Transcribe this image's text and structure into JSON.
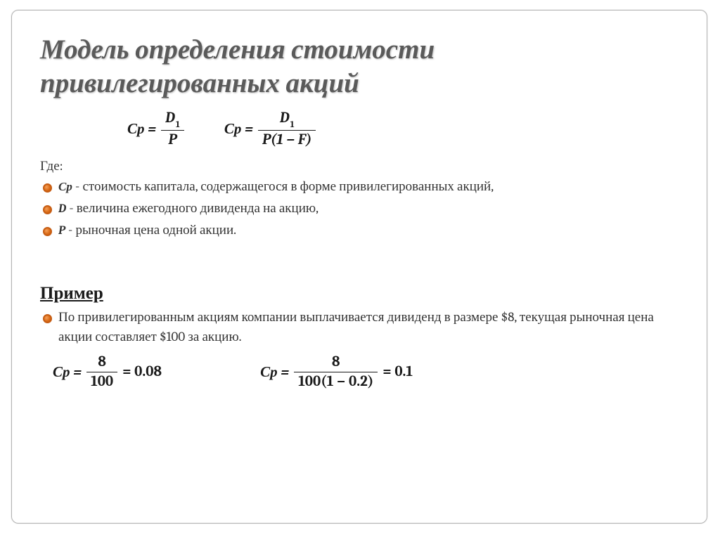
{
  "colors": {
    "title_text": "#5a5a5a",
    "body_text": "#333333",
    "formula_text": "#1a1a1a",
    "bullet_fill_start": "#f5a05a",
    "bullet_fill_mid": "#d96a15",
    "bullet_fill_end": "#b85510",
    "bullet_border": "#c75d13",
    "frame_border": "#b3b3b3",
    "background": "#ffffff"
  },
  "typography": {
    "title_fontsize": 39,
    "title_italic": true,
    "title_bold": true,
    "body_fontsize": 19,
    "formula_fontsize": 21,
    "example_heading_fontsize": 25,
    "font_family": "Cambria, Georgia, serif"
  },
  "title": "Модель определения стоимости привилегированных акций",
  "formulas": {
    "top_left": {
      "lhs": "Ср =",
      "num": "D",
      "num_sub": "1",
      "den": "P"
    },
    "top_right": {
      "lhs": "Ср =",
      "num": "D",
      "num_sub": "1",
      "den": "P(1 − F)"
    }
  },
  "where_label": "Где:",
  "definitions": [
    {
      "var": "Ср",
      "text": " -  стоимость капитала, содержащегося в форме привилегированных акций,"
    },
    {
      "var": "D",
      "text": " - величина ежегодного дивиденда на акцию,"
    },
    {
      "var": "P",
      "text": " - рыночная цена одной акции."
    }
  ],
  "example_heading": "Пример",
  "example_bullets": [
    {
      "text": "По привилегированным акциям компании выплачивается дивиденд в размере $8, текущая рыночная цена акции составляет $100 за акцию."
    }
  ],
  "example_formulas": {
    "left": {
      "lhs": "Ср =",
      "num": "8",
      "den": "100",
      "result": "= 0.08"
    },
    "right": {
      "lhs": "Ср =",
      "num": "8",
      "den": "100(1 − 0.2)",
      "result": "= 0.1"
    }
  }
}
